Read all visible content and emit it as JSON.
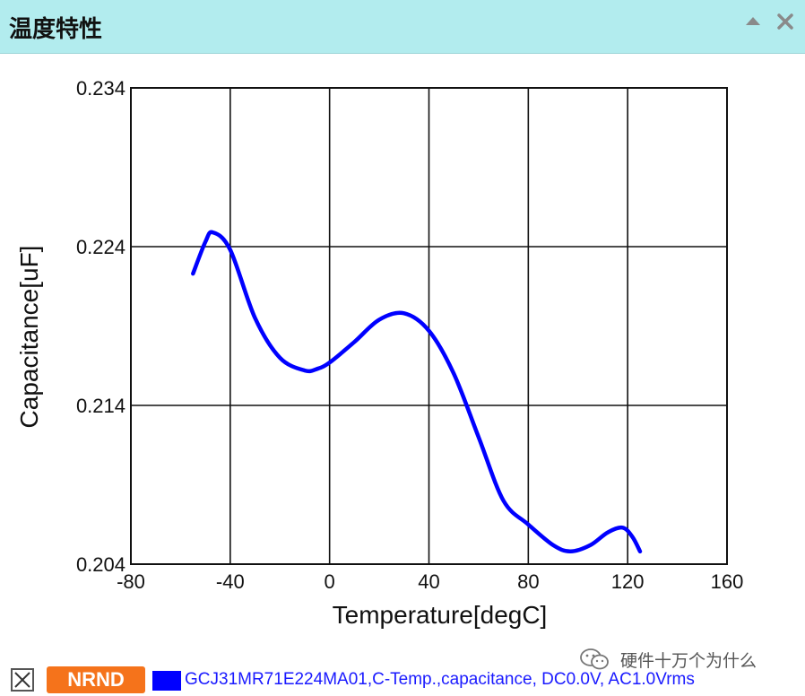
{
  "panel": {
    "title": "温度特性",
    "collapse_icon": "triangle-up-icon",
    "close_icon": "close-icon"
  },
  "chart_data": {
    "type": "line",
    "title": "",
    "xlabel": "Temperature[degC]",
    "ylabel": "Capacitance[uF]",
    "xlim": [
      -80,
      160
    ],
    "ylim": [
      0.204,
      0.234
    ],
    "x_ticks": [
      -80,
      -40,
      0,
      40,
      80,
      120,
      160
    ],
    "y_ticks": [
      0.204,
      0.214,
      0.224,
      0.234
    ],
    "x_tick_labels": [
      "-80",
      "-40",
      "0",
      "40",
      "80",
      "120",
      "160"
    ],
    "y_tick_labels": [
      "0.204",
      "0.214",
      "0.224",
      "0.234"
    ],
    "grid": true,
    "line_color": "#0000ff",
    "series": [
      {
        "name": "GCJ31MR71E224MA01,C-Temp.,capacitance, DC0.0V, AC1.0Vrms",
        "x": [
          -55,
          -50,
          -47,
          -40,
          -30,
          -20,
          -10,
          -5,
          0,
          10,
          20,
          30,
          40,
          50,
          60,
          70,
          80,
          90,
          97,
          105,
          112,
          118,
          122,
          125
        ],
        "y": [
          0.2223,
          0.2243,
          0.2249,
          0.2238,
          0.2195,
          0.217,
          0.2162,
          0.2163,
          0.2167,
          0.218,
          0.2194,
          0.2198,
          0.2187,
          0.216,
          0.212,
          0.208,
          0.2065,
          0.2052,
          0.2048,
          0.2052,
          0.206,
          0.2063,
          0.2057,
          0.2048
        ]
      }
    ]
  },
  "legend": {
    "checkbox_icon": "checkbox-checked-icon",
    "badge": "NRND",
    "badge_color": "#f5731b",
    "series_label": "GCJ31MR71E224MA01,C-Temp.,capacitance, DC0.0V, AC1.0Vrms"
  },
  "watermark": {
    "icon": "wechat-icon",
    "text": "硬件十万个为什么"
  }
}
